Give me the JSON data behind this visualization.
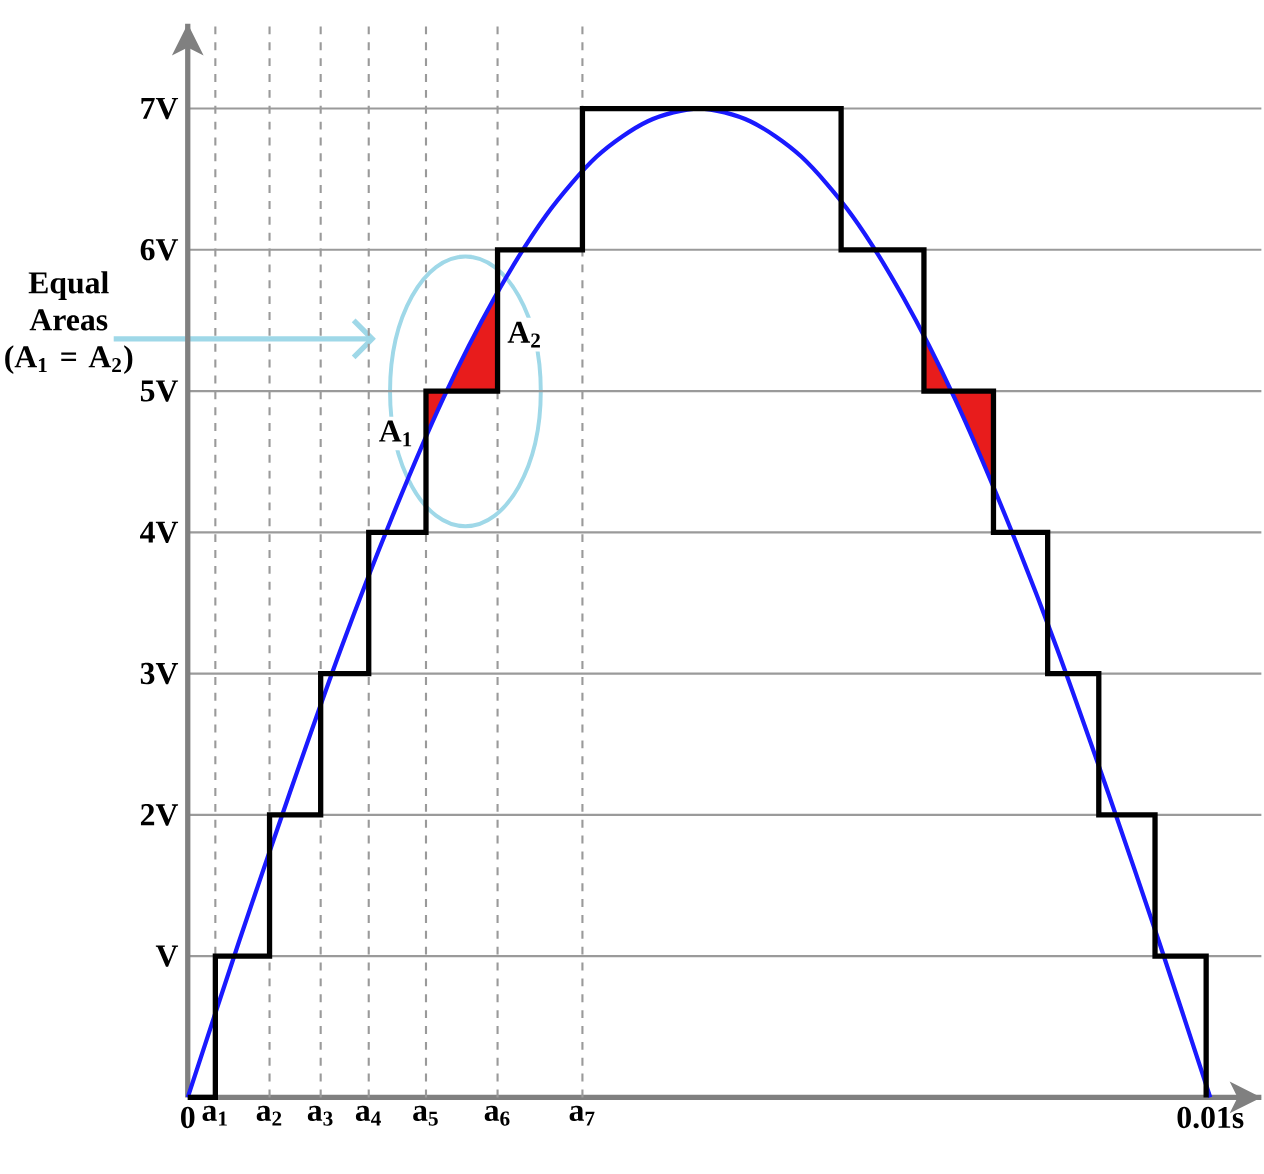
{
  "chart_data": {
    "type": "step",
    "xlim": [
      0,
      0.0105
    ],
    "ylim": [
      0,
      7.6
    ],
    "xticks": [
      {
        "value": 0,
        "label": "0"
      },
      {
        "value": 0.01,
        "label": "0.01s"
      }
    ],
    "yticks": [
      {
        "value": 1,
        "label": "V"
      },
      {
        "value": 2,
        "label": "2V"
      },
      {
        "value": 3,
        "label": "3V"
      },
      {
        "value": 4,
        "label": "4V"
      },
      {
        "value": 5,
        "label": "5V"
      },
      {
        "value": 6,
        "label": "6V"
      },
      {
        "value": 7,
        "label": "7V"
      }
    ],
    "grid": "y",
    "series": [
      {
        "type": "line",
        "color": "#1a1aff",
        "x": [
          0,
          0.0005,
          0.001,
          0.0015,
          0.002,
          0.0025,
          0.003,
          0.0035,
          0.004,
          0.0045,
          0.005,
          0.0055,
          0.006,
          0.0065,
          0.007,
          0.0075,
          0.008,
          0.0085,
          0.009,
          0.0095,
          0.01
        ],
        "values": [
          0,
          1.1,
          2.16,
          3.18,
          4.11,
          4.95,
          5.66,
          6.24,
          6.66,
          6.91,
          7.0,
          6.91,
          6.66,
          6.24,
          5.66,
          4.95,
          4.11,
          3.18,
          2.16,
          1.1,
          0
        ]
      },
      {
        "color": "#000000",
        "x": [
          0,
          0.00027,
          0.0008,
          0.0013,
          0.00177,
          0.00233,
          0.00303,
          0.00386,
          0.00639,
          0.0072,
          0.00788,
          0.00841,
          0.00891,
          0.00946,
          0.00996
        ],
        "values": [
          0,
          1,
          2,
          3,
          4,
          5,
          6,
          7,
          6,
          5,
          4,
          3,
          2,
          1,
          0
        ]
      }
    ],
    "ref_lines": [
      {
        "axis": "x",
        "value": 0.00027,
        "label": "a$_{1}$",
        "color": "#9a9a9a",
        "line_style": "dashed"
      },
      {
        "axis": "x",
        "value": 0.0008,
        "label": "a$_{2}$",
        "color": "#9a9a9a",
        "line_style": "dashed"
      },
      {
        "axis": "x",
        "value": 0.0013,
        "label": "a$_{3}$",
        "color": "#9a9a9a",
        "line_style": "dashed"
      },
      {
        "axis": "x",
        "value": 0.00177,
        "label": "a$_{4}$",
        "color": "#9a9a9a",
        "line_style": "dashed"
      },
      {
        "axis": "x",
        "value": 0.00233,
        "label": "a$_{5}$",
        "color": "#9a9a9a",
        "line_style": "dashed"
      },
      {
        "axis": "x",
        "value": 0.00303,
        "label": "a$_{6}$",
        "color": "#9a9a9a",
        "line_style": "dashed"
      },
      {
        "axis": "x",
        "value": 0.00386,
        "label": "a$_{7}$",
        "color": "#9a9a9a",
        "line_style": "dashed"
      }
    ],
    "annotations": [
      {
        "text": "Equal Areas (A$_{1}$ = A$_{2}$)",
        "x": 0.00184,
        "y": 5.37
      },
      "A$_{1}$",
      "A$_{2}$"
    ]
  }
}
